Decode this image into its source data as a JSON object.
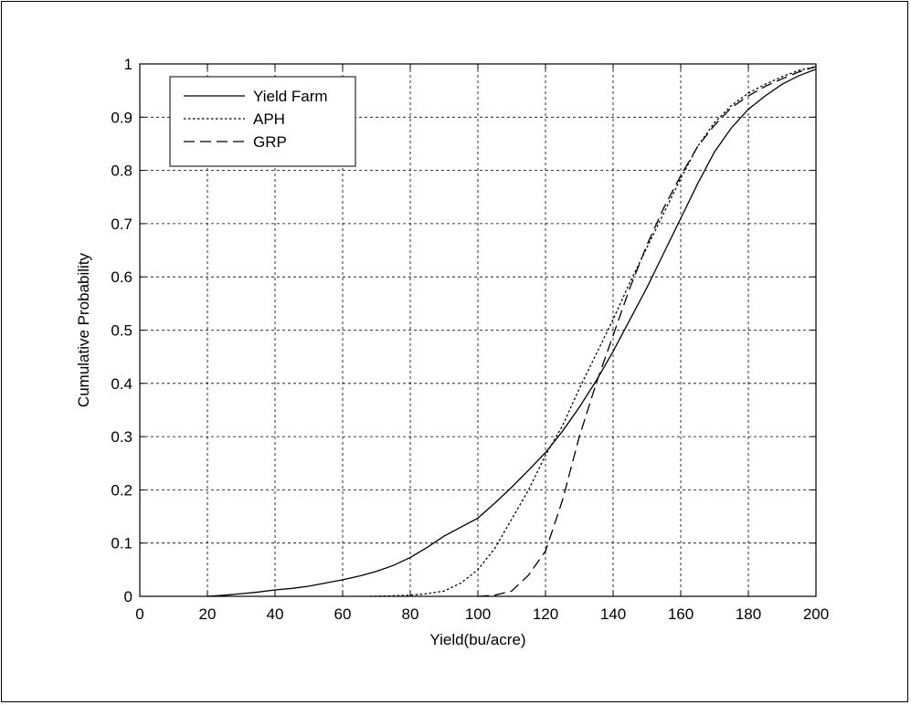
{
  "chart_data": {
    "type": "line",
    "title": "",
    "xlabel": "Yield(bu/acre)",
    "ylabel": "Cumulative Probability",
    "xlim": [
      0,
      200
    ],
    "ylim": [
      0,
      1
    ],
    "x_ticks": [
      "0",
      "20",
      "40",
      "60",
      "80",
      "100",
      "120",
      "140",
      "160",
      "180",
      "200"
    ],
    "y_ticks": [
      "0",
      "0.1",
      "0.2",
      "0.3",
      "0.4",
      "0.5",
      "0.6",
      "0.7",
      "0.8",
      "0.9",
      "1"
    ],
    "grid": true,
    "legend_position": "top-left",
    "series": [
      {
        "name": "Yield Farm",
        "line_style": "solid",
        "color": "#000000",
        "points": [
          [
            20,
            0
          ],
          [
            25,
            0.002
          ],
          [
            30,
            0.005
          ],
          [
            35,
            0.008
          ],
          [
            40,
            0.012
          ],
          [
            45,
            0.015
          ],
          [
            50,
            0.019
          ],
          [
            55,
            0.025
          ],
          [
            60,
            0.031
          ],
          [
            65,
            0.038
          ],
          [
            70,
            0.047
          ],
          [
            75,
            0.058
          ],
          [
            80,
            0.073
          ],
          [
            85,
            0.092
          ],
          [
            90,
            0.113
          ],
          [
            95,
            0.13
          ],
          [
            100,
            0.147
          ],
          [
            105,
            0.175
          ],
          [
            110,
            0.205
          ],
          [
            115,
            0.237
          ],
          [
            120,
            0.27
          ],
          [
            125,
            0.31
          ],
          [
            130,
            0.355
          ],
          [
            135,
            0.405
          ],
          [
            140,
            0.46
          ],
          [
            145,
            0.52
          ],
          [
            150,
            0.58
          ],
          [
            155,
            0.645
          ],
          [
            160,
            0.71
          ],
          [
            165,
            0.775
          ],
          [
            170,
            0.835
          ],
          [
            175,
            0.88
          ],
          [
            180,
            0.915
          ],
          [
            185,
            0.94
          ],
          [
            190,
            0.962
          ],
          [
            195,
            0.978
          ],
          [
            200,
            0.99
          ]
        ]
      },
      {
        "name": "APH",
        "line_style": "dotted",
        "color": "#000000",
        "points": [
          [
            68,
            0
          ],
          [
            75,
            0.001
          ],
          [
            80,
            0.002
          ],
          [
            85,
            0.005
          ],
          [
            90,
            0.01
          ],
          [
            95,
            0.025
          ],
          [
            100,
            0.05
          ],
          [
            105,
            0.09
          ],
          [
            110,
            0.145
          ],
          [
            115,
            0.2
          ],
          [
            120,
            0.265
          ],
          [
            125,
            0.32
          ],
          [
            130,
            0.39
          ],
          [
            135,
            0.455
          ],
          [
            140,
            0.52
          ],
          [
            145,
            0.59
          ],
          [
            150,
            0.655
          ],
          [
            155,
            0.72
          ],
          [
            160,
            0.785
          ],
          [
            165,
            0.845
          ],
          [
            170,
            0.89
          ],
          [
            175,
            0.922
          ],
          [
            180,
            0.945
          ],
          [
            185,
            0.962
          ],
          [
            190,
            0.976
          ],
          [
            195,
            0.988
          ],
          [
            200,
            0.995
          ]
        ]
      },
      {
        "name": "GRP",
        "line_style": "dashed",
        "color": "#000000",
        "points": [
          [
            100,
            0
          ],
          [
            105,
            0.002
          ],
          [
            110,
            0.01
          ],
          [
            115,
            0.04
          ],
          [
            120,
            0.085
          ],
          [
            125,
            0.18
          ],
          [
            130,
            0.3
          ],
          [
            135,
            0.4
          ],
          [
            140,
            0.49
          ],
          [
            145,
            0.58
          ],
          [
            150,
            0.66
          ],
          [
            155,
            0.73
          ],
          [
            160,
            0.79
          ],
          [
            165,
            0.845
          ],
          [
            170,
            0.885
          ],
          [
            175,
            0.918
          ],
          [
            180,
            0.94
          ],
          [
            185,
            0.958
          ],
          [
            190,
            0.972
          ],
          [
            195,
            0.985
          ],
          [
            200,
            0.995
          ]
        ]
      }
    ]
  }
}
